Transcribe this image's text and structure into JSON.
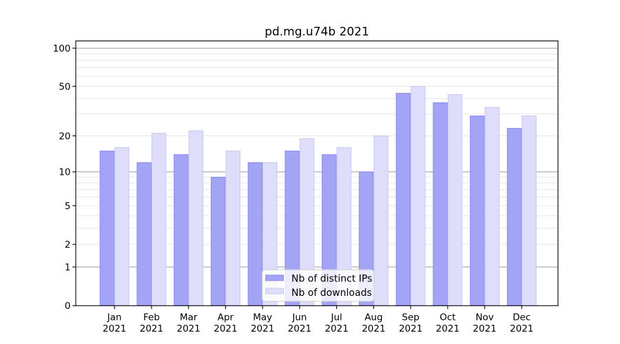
{
  "chart_data": {
    "type": "bar",
    "title": "pd.mg.u74b 2021",
    "categories": [
      "Jan",
      "Feb",
      "Mar",
      "Apr",
      "May",
      "Jun",
      "Jul",
      "Aug",
      "Sep",
      "Oct",
      "Nov",
      "Dec"
    ],
    "category_year_line": "2021",
    "series": [
      {
        "name": "Nb of distinct IPs",
        "values": [
          15,
          12,
          14,
          9,
          12,
          15,
          14,
          10,
          44,
          37,
          29,
          23
        ],
        "fill": "#a4a4f6",
        "edge": "#8c8cea"
      },
      {
        "name": "Nb of downloads",
        "values": [
          16,
          21,
          22,
          15,
          12,
          19,
          16,
          20,
          50,
          43,
          34,
          29
        ],
        "fill": "#dedefa",
        "edge": "#c9c9f2"
      }
    ],
    "y_axis": {
      "scale": "log1p",
      "tick_values": [
        0,
        1,
        2,
        5,
        10,
        20,
        50,
        100
      ],
      "tick_labels": [
        "0",
        "1",
        "2",
        "5",
        "10",
        "20",
        "50",
        "100"
      ],
      "major_grid_values": [
        1,
        10,
        100
      ],
      "minor_grid_values": [
        2,
        3,
        4,
        5,
        6,
        7,
        8,
        9,
        20,
        30,
        40,
        50,
        60,
        70,
        80,
        90
      ],
      "axis_top_value": 114
    },
    "x_axis": {
      "tick_labels_line1": [
        "Jan",
        "Feb",
        "Mar",
        "Apr",
        "May",
        "Jun",
        "Jul",
        "Aug",
        "Sep",
        "Oct",
        "Nov",
        "Dec"
      ],
      "tick_labels_line2": [
        "2021",
        "2021",
        "2021",
        "2021",
        "2021",
        "2021",
        "2021",
        "2021",
        "2021",
        "2021",
        "2021",
        "2021"
      ]
    },
    "legend": {
      "position": "lower center",
      "labels": [
        "Nb of distinct IPs",
        "Nb of downloads"
      ]
    },
    "colors": {
      "background": "#ffffff",
      "grid_major": "#8d8d8d",
      "grid_minor": "#e4e4e4",
      "spine": "#000000",
      "text": "#000000",
      "legend_background": "rgba(255,255,255,0.8)",
      "legend_border": "#cccccc"
    }
  }
}
